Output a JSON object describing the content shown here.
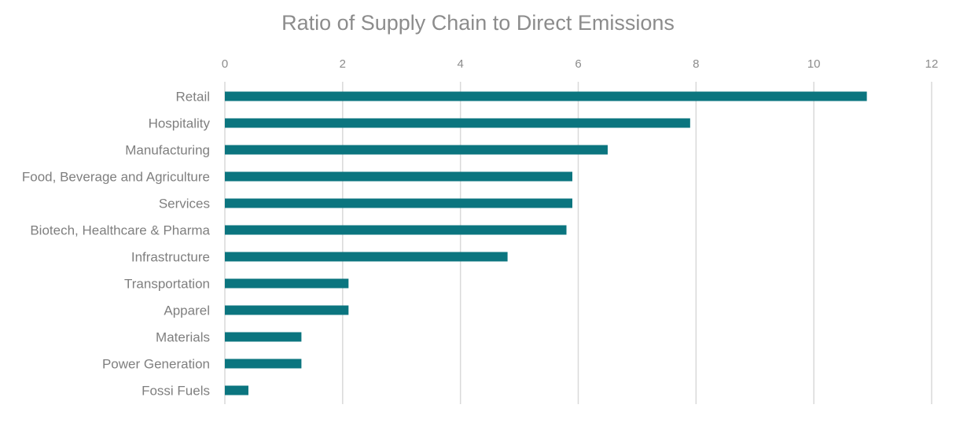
{
  "chart_data": {
    "type": "bar",
    "orientation": "horizontal",
    "title": "Ratio of Supply Chain to Direct Emissions",
    "xlabel": "",
    "ylabel": "",
    "categories": [
      "Retail",
      "Hospitality",
      "Manufacturing",
      "Food, Beverage and Agriculture",
      "Services",
      "Biotech, Healthcare & Pharma",
      "Infrastructure",
      "Transportation",
      "Apparel",
      "Materials",
      "Power Generation",
      "Fossi Fuels"
    ],
    "values": [
      10.9,
      7.9,
      6.5,
      5.9,
      5.9,
      5.8,
      4.8,
      2.1,
      2.1,
      1.3,
      1.3,
      0.4
    ],
    "xlim": [
      0,
      12
    ],
    "xticks": [
      0,
      2,
      4,
      6,
      8,
      10,
      12
    ],
    "x_axis_position": "top",
    "grid": true,
    "legend": "none",
    "colors": {
      "bar": "#0b757f",
      "grid": "#d9d9d9",
      "text": "#8c8c8c"
    }
  }
}
